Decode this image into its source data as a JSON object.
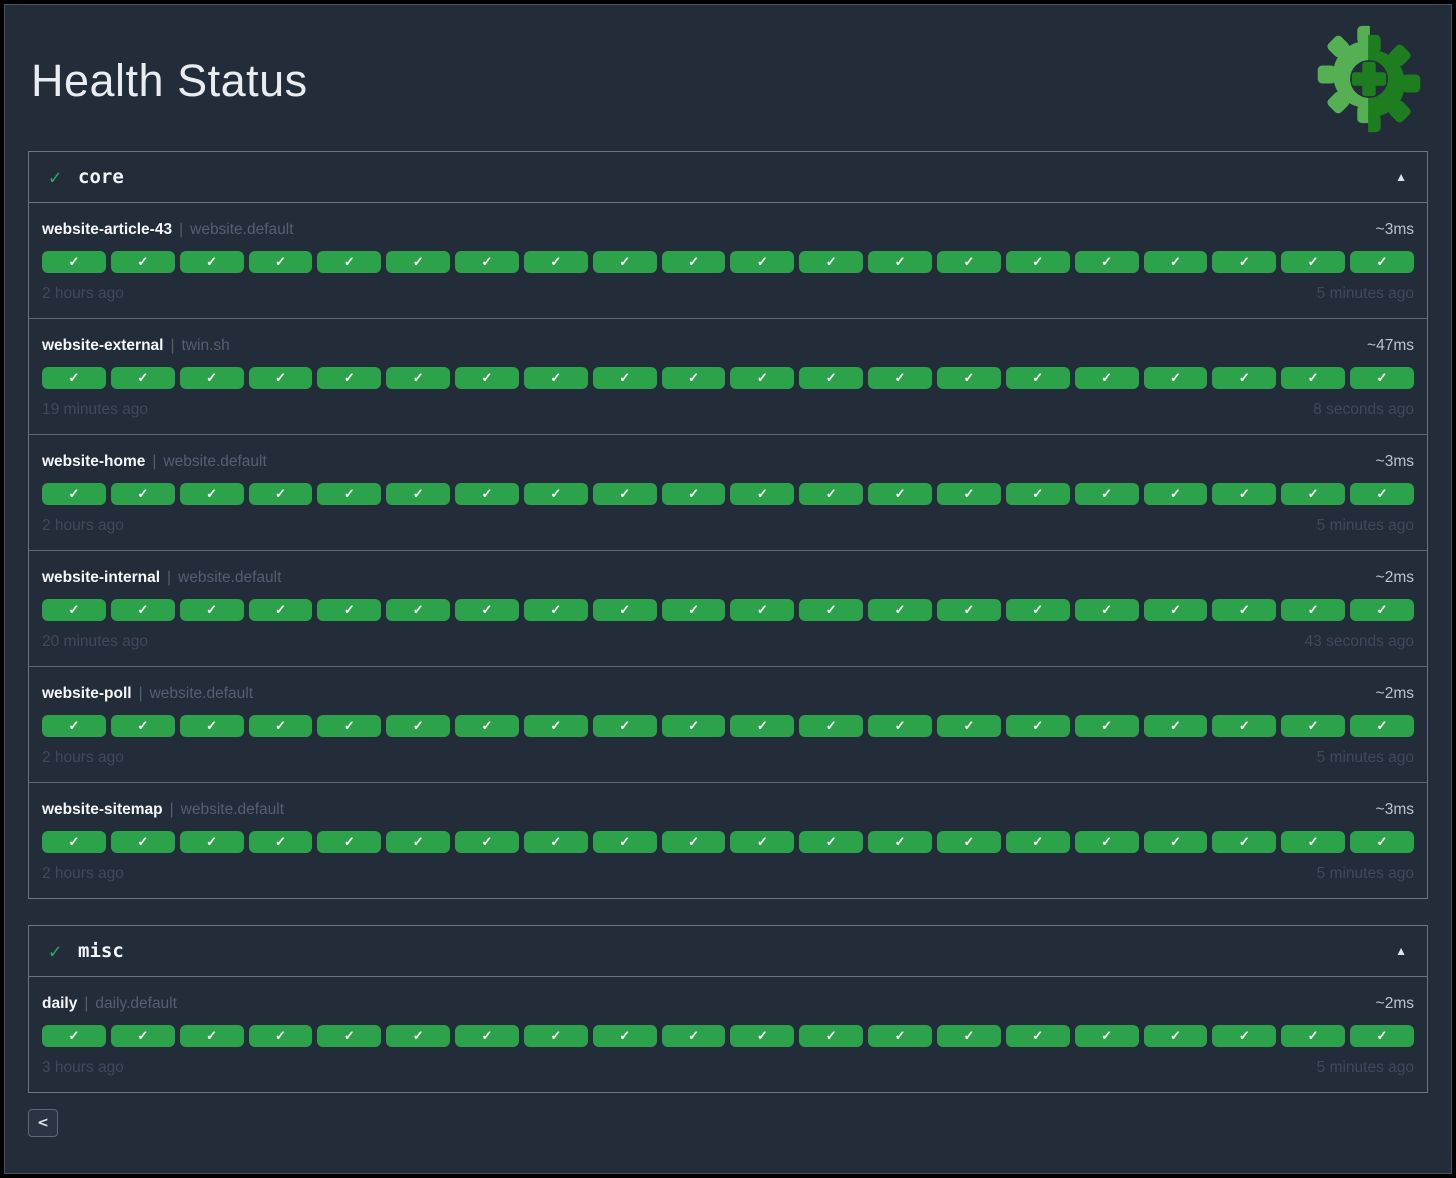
{
  "page": {
    "title": "Health Status"
  },
  "icons": {
    "pill_check": "✓",
    "group_check": "✓",
    "collapse": "▲",
    "separator": "|"
  },
  "colors": {
    "page_background": "#232c39",
    "panel_border": "#6b7584",
    "pill_green": "#2ca24a",
    "check_green": "#2bab5e",
    "logo_light_green": "#55b054",
    "logo_dark_green": "#1d7d1f"
  },
  "groups": [
    {
      "name": "core",
      "status": "healthy",
      "services": [
        {
          "name": "website-article-43",
          "namespace": "website.default",
          "latency": "~3ms",
          "history_count": 20,
          "oldest": "2 hours ago",
          "newest": "5 minutes ago"
        },
        {
          "name": "website-external",
          "namespace": "twin.sh",
          "latency": "~47ms",
          "history_count": 20,
          "oldest": "19 minutes ago",
          "newest": "8 seconds ago"
        },
        {
          "name": "website-home",
          "namespace": "website.default",
          "latency": "~3ms",
          "history_count": 20,
          "oldest": "2 hours ago",
          "newest": "5 minutes ago"
        },
        {
          "name": "website-internal",
          "namespace": "website.default",
          "latency": "~2ms",
          "history_count": 20,
          "oldest": "20 minutes ago",
          "newest": "43 seconds ago"
        },
        {
          "name": "website-poll",
          "namespace": "website.default",
          "latency": "~2ms",
          "history_count": 20,
          "oldest": "2 hours ago",
          "newest": "5 minutes ago"
        },
        {
          "name": "website-sitemap",
          "namespace": "website.default",
          "latency": "~3ms",
          "history_count": 20,
          "oldest": "2 hours ago",
          "newest": "5 minutes ago"
        }
      ]
    },
    {
      "name": "misc",
      "status": "healthy",
      "services": [
        {
          "name": "daily",
          "namespace": "daily.default",
          "latency": "~2ms",
          "history_count": 20,
          "oldest": "3 hours ago",
          "newest": "5 minutes ago"
        }
      ]
    }
  ],
  "pagination": {
    "prev_label": "<"
  }
}
